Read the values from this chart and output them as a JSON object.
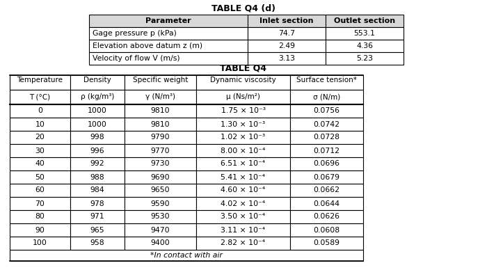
{
  "table_d_title": "TABLE Q4 (d)",
  "table_d_headers": [
    "Parameter",
    "Inlet section",
    "Outlet section"
  ],
  "table_d_rows": [
    [
      "Gage pressure p (kPa)",
      "74.7",
      "553.1"
    ],
    [
      "Elevation above datum z (m)",
      "2.49",
      "4.36"
    ],
    [
      "Velocity of flow V (m/s)",
      "3.13",
      "5.23"
    ]
  ],
  "table_q4_title": "TABLE Q4",
  "table_q4_col_headers_line1": [
    "Temperature",
    "Density",
    "Specific weight",
    "Dynamic viscosity",
    "Surface tension*"
  ],
  "table_q4_col_headers_line2": [
    "T (°C)",
    "ρ (kg/m³)",
    "γ (N/m³)",
    "μ (Ns/m²)",
    "σ (N/m)"
  ],
  "table_q4_rows": [
    [
      "0",
      "1000",
      "9810",
      "1.75 × 10⁻³",
      "0.0756"
    ],
    [
      "10",
      "1000",
      "9810",
      "1.30 × 10⁻³",
      "0.0742"
    ],
    [
      "20",
      "998",
      "9790",
      "1.02 × 10⁻³",
      "0.0728"
    ],
    [
      "30",
      "996",
      "9770",
      "8.00 × 10⁻⁴",
      "0.0712"
    ],
    [
      "40",
      "992",
      "9730",
      "6.51 × 10⁻⁴",
      "0.0696"
    ],
    [
      "50",
      "988",
      "9690",
      "5.41 × 10⁻⁴",
      "0.0679"
    ],
    [
      "60",
      "984",
      "9650",
      "4.60 × 10⁻⁴",
      "0.0662"
    ],
    [
      "70",
      "978",
      "9590",
      "4.02 × 10⁻⁴",
      "0.0644"
    ],
    [
      "80",
      "971",
      "9530",
      "3.50 × 10⁻⁴",
      "0.0626"
    ],
    [
      "90",
      "965",
      "9470",
      "3.11 × 10⁻⁴",
      "0.0608"
    ],
    [
      "100",
      "958",
      "9400",
      "2.82 × 10⁻⁴",
      "0.0589"
    ]
  ],
  "footnote": "*In contact with air",
  "bg_color": "#ffffff"
}
